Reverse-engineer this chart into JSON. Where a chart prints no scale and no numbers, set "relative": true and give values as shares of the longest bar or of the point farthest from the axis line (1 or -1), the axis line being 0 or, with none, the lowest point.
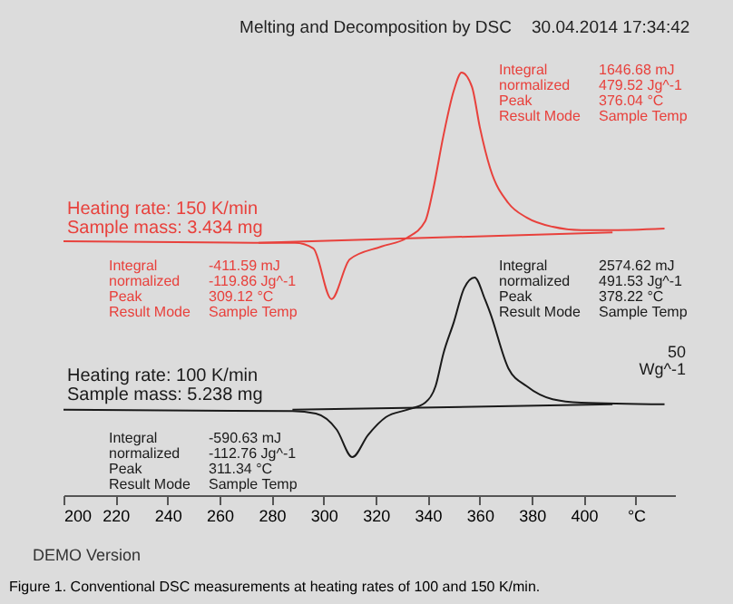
{
  "chart_data": {
    "type": "line",
    "title": "Melting and Decomposition by DSC",
    "subtitle": "30.04.2014 17:34:42",
    "relative": true,
    "legend": false,
    "marker": "none",
    "line_style": "solid",
    "xlim": [
      200,
      435
    ],
    "xticks": [
      200,
      220,
      240,
      260,
      280,
      300,
      320,
      340,
      360,
      380,
      400,
      {
        "value": 420,
        "label": "°C"
      }
    ],
    "series": [
      {
        "color": "#e8413c",
        "x": [
          200,
          273,
          289,
          296,
          303,
          310,
          322,
          332,
          339,
          342,
          346,
          350,
          353,
          357,
          360,
          364,
          371,
          378,
          388,
          399,
          409,
          431
        ],
        "values": [
          0.601,
          0.597,
          0.597,
          0.584,
          0.464,
          0.558,
          0.588,
          0.609,
          0.648,
          0.721,
          0.85,
          0.957,
          1,
          0.966,
          0.871,
          0.773,
          0.691,
          0.657,
          0.635,
          0.627,
          0.627,
          0.631
        ]
      },
      {
        "color": "#e8413c",
        "x": [
          275,
          411
        ],
        "values": [
          0.597,
          0.622
        ]
      },
      {
        "color": "#1a1a1a",
        "x": [
          200,
          288,
          297,
          305,
          311,
          317,
          324,
          332,
          339,
          343,
          346,
          350,
          354,
          358,
          362,
          364,
          371,
          378,
          388,
          399,
          431
        ],
        "values": [
          0.202,
          0.199,
          0.193,
          0.155,
          0.09,
          0.142,
          0.185,
          0.202,
          0.219,
          0.258,
          0.335,
          0.409,
          0.49,
          0.515,
          0.463,
          0.431,
          0.3,
          0.258,
          0.227,
          0.219,
          0.215
        ]
      },
      {
        "color": "#1a1a1a",
        "x": [
          288,
          411
        ],
        "values": [
          0.202,
          0.215
        ]
      }
    ],
    "annotations": [
      "Heating rate: 150 K/min\nSample mass: 3.434 mg",
      "Integral\n  normalized\nPeak\nResult Mode",
      "1646.68 mJ\n479.52 Jg^-1\n376.04 °C\nSample Temp",
      "Integral\n  normalized\nPeak\nResult Mode",
      "-411.59 mJ\n-119.86 Jg^-1\n309.12 °C\nSample Temp",
      "Heating rate: 100 K/min\nSample mass: 5.238 mg",
      "Integral\n  normalized\nPeak\nResult Mode",
      "2574.62 mJ\n491.53 Jg^-1\n378.22 °C\nSample Temp",
      "Integral\n  normalized\nPeak\nResult Mode",
      "-590.63 mJ\n-112.76 Jg^-1\n311.34 °C\nSample Temp",
      "50\nWg^-1",
      "DEMO Version",
      "Figure 1. Conventional DSC measurements at heating rates of 100 and 150 K/min."
    ]
  }
}
